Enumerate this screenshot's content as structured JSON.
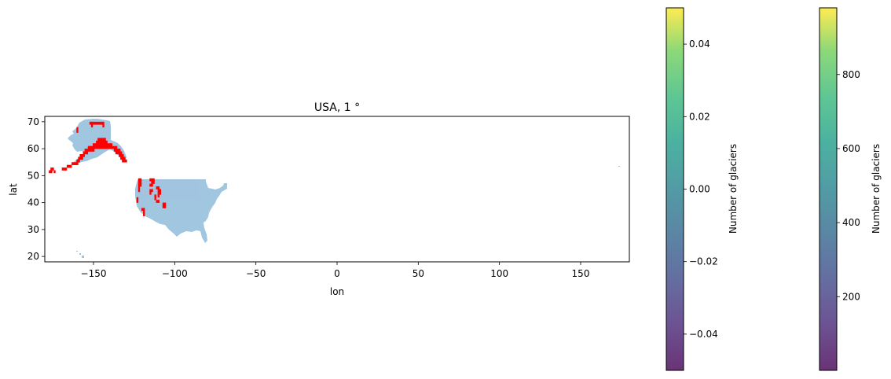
{
  "chart_data": [
    {
      "type": "heatmap",
      "title": "USA, 1 °",
      "xlabel": "lon",
      "ylabel": "lat",
      "xlim": [
        -180,
        180
      ],
      "ylim": [
        18,
        72
      ],
      "xticks": [
        -150,
        -100,
        -50,
        0,
        50,
        100,
        150
      ],
      "xtick_labels": [
        "−150",
        "−100",
        "−50",
        "0",
        "50",
        "100",
        "150"
      ],
      "yticks": [
        20,
        30,
        40,
        50,
        60,
        70
      ],
      "ytick_labels": [
        "20",
        "30",
        "40",
        "50",
        "60",
        "70"
      ],
      "grid": false,
      "land_color": "#91bcdb",
      "glacier_cell_color": "#ff0000",
      "glacier_cells_1deg": [
        [
          -152,
          69.5
        ],
        [
          -151,
          69.5
        ],
        [
          -150,
          69.5
        ],
        [
          -149,
          69.5
        ],
        [
          -148,
          69.5
        ],
        [
          -147,
          69.5
        ],
        [
          -146,
          69.5
        ],
        [
          -145,
          69.5
        ],
        [
          -144,
          69.5
        ],
        [
          -151,
          68.5
        ],
        [
          -144,
          68.5
        ],
        [
          -147,
          63.5
        ],
        [
          -146,
          63.5
        ],
        [
          -145,
          63.5
        ],
        [
          -144,
          63.5
        ],
        [
          -143,
          63.5
        ],
        [
          -148,
          62.5
        ],
        [
          -147,
          62.5
        ],
        [
          -146,
          62.5
        ],
        [
          -145,
          62.5
        ],
        [
          -144,
          62.5
        ],
        [
          -143,
          62.5
        ],
        [
          -142,
          62.5
        ],
        [
          -150,
          61.5
        ],
        [
          -149,
          61.5
        ],
        [
          -148,
          61.5
        ],
        [
          -147,
          61.5
        ],
        [
          -146,
          61.5
        ],
        [
          -145,
          61.5
        ],
        [
          -144,
          61.5
        ],
        [
          -143,
          61.5
        ],
        [
          -142,
          61.5
        ],
        [
          -141,
          61.5
        ],
        [
          -140,
          61.5
        ],
        [
          -139,
          61.5
        ],
        [
          -153,
          60.5
        ],
        [
          -152,
          60.5
        ],
        [
          -151,
          60.5
        ],
        [
          -150,
          60.5
        ],
        [
          -149,
          60.5
        ],
        [
          -148,
          60.5
        ],
        [
          -147,
          60.5
        ],
        [
          -146,
          60.5
        ],
        [
          -145,
          60.5
        ],
        [
          -144,
          60.5
        ],
        [
          -143,
          60.5
        ],
        [
          -142,
          60.5
        ],
        [
          -141,
          60.5
        ],
        [
          -140,
          60.5
        ],
        [
          -139,
          60.5
        ],
        [
          -138,
          60.5
        ],
        [
          -137,
          60.5
        ],
        [
          -136,
          60.5
        ],
        [
          -155,
          59.5
        ],
        [
          -154,
          59.5
        ],
        [
          -153,
          59.5
        ],
        [
          -152,
          59.5
        ],
        [
          -151,
          59.5
        ],
        [
          -150,
          59.5
        ],
        [
          -137,
          59.5
        ],
        [
          -136,
          59.5
        ],
        [
          -135,
          59.5
        ],
        [
          -134,
          59.5
        ],
        [
          -156,
          58.5
        ],
        [
          -155,
          58.5
        ],
        [
          -154,
          58.5
        ],
        [
          -136,
          58.5
        ],
        [
          -135,
          58.5
        ],
        [
          -134,
          58.5
        ],
        [
          -133,
          58.5
        ],
        [
          -158,
          57.5
        ],
        [
          -157,
          57.5
        ],
        [
          -156,
          57.5
        ],
        [
          -134,
          57.5
        ],
        [
          -133,
          57.5
        ],
        [
          -132,
          57.5
        ],
        [
          -159,
          56.5
        ],
        [
          -158,
          56.5
        ],
        [
          -157,
          56.5
        ],
        [
          -133,
          56.5
        ],
        [
          -132,
          56.5
        ],
        [
          -131,
          56.5
        ],
        [
          -160,
          55.5
        ],
        [
          -159,
          55.5
        ],
        [
          -132,
          55.5
        ],
        [
          -131,
          55.5
        ],
        [
          -130,
          55.5
        ],
        [
          -163,
          54.5
        ],
        [
          -162,
          54.5
        ],
        [
          -161,
          54.5
        ],
        [
          -160,
          54.5
        ],
        [
          -166,
          53.5
        ],
        [
          -165,
          53.5
        ],
        [
          -164,
          53.5
        ],
        [
          -169,
          52.5
        ],
        [
          -168,
          52.5
        ],
        [
          -167,
          52.5
        ],
        [
          -176,
          52.5
        ],
        [
          -175,
          52.5
        ],
        [
          -177,
          51.5
        ],
        [
          -176,
          51.5
        ],
        [
          -174,
          51.5
        ],
        [
          -160,
          67.5
        ],
        [
          -160,
          66.5
        ],
        [
          -122,
          48.5
        ],
        [
          -121,
          48.5
        ],
        [
          -115,
          48.5
        ],
        [
          -114,
          48.5
        ],
        [
          -113,
          48.5
        ],
        [
          -122,
          47.5
        ],
        [
          -121,
          47.5
        ],
        [
          -114,
          47.5
        ],
        [
          -113,
          47.5
        ],
        [
          -122,
          46.5
        ],
        [
          -121,
          46.5
        ],
        [
          -115,
          46.5
        ],
        [
          -114,
          46.5
        ],
        [
          -122,
          45.5
        ],
        [
          -111,
          45.5
        ],
        [
          -110,
          45.5
        ],
        [
          -122,
          44.5
        ],
        [
          -115,
          44.5
        ],
        [
          -114,
          44.5
        ],
        [
          -110,
          44.5
        ],
        [
          -109,
          44.5
        ],
        [
          -115,
          43.5
        ],
        [
          -110,
          43.5
        ],
        [
          -109,
          43.5
        ],
        [
          -112,
          42.5
        ],
        [
          -110,
          42.5
        ],
        [
          -123,
          41.5
        ],
        [
          -112,
          41.5
        ],
        [
          -123,
          40.5
        ],
        [
          -111,
          40.5
        ],
        [
          -110,
          40.5
        ],
        [
          -107,
          39.5
        ],
        [
          -106,
          39.5
        ],
        [
          -107,
          38.5
        ],
        [
          -106,
          38.5
        ],
        [
          -120,
          37.5
        ],
        [
          -119,
          37.5
        ],
        [
          -119,
          36.5
        ],
        [
          -119,
          35.5
        ]
      ]
    },
    {
      "type": "colorbar",
      "label": "Number of glaciers",
      "cmap": "viridis",
      "range": [
        -0.05,
        0.05
      ],
      "ticks": [
        -0.04,
        -0.02,
        0.0,
        0.02,
        0.04
      ],
      "tick_labels": [
        "−0.04",
        "−0.02",
        "0.00",
        "0.02",
        "0.04"
      ]
    },
    {
      "type": "colorbar",
      "label": "Number of glaciers",
      "cmap": "viridis",
      "range": [
        1,
        980
      ],
      "ticks": [
        200,
        400,
        600,
        800
      ],
      "tick_labels": [
        "200",
        "400",
        "600",
        "800"
      ]
    }
  ]
}
